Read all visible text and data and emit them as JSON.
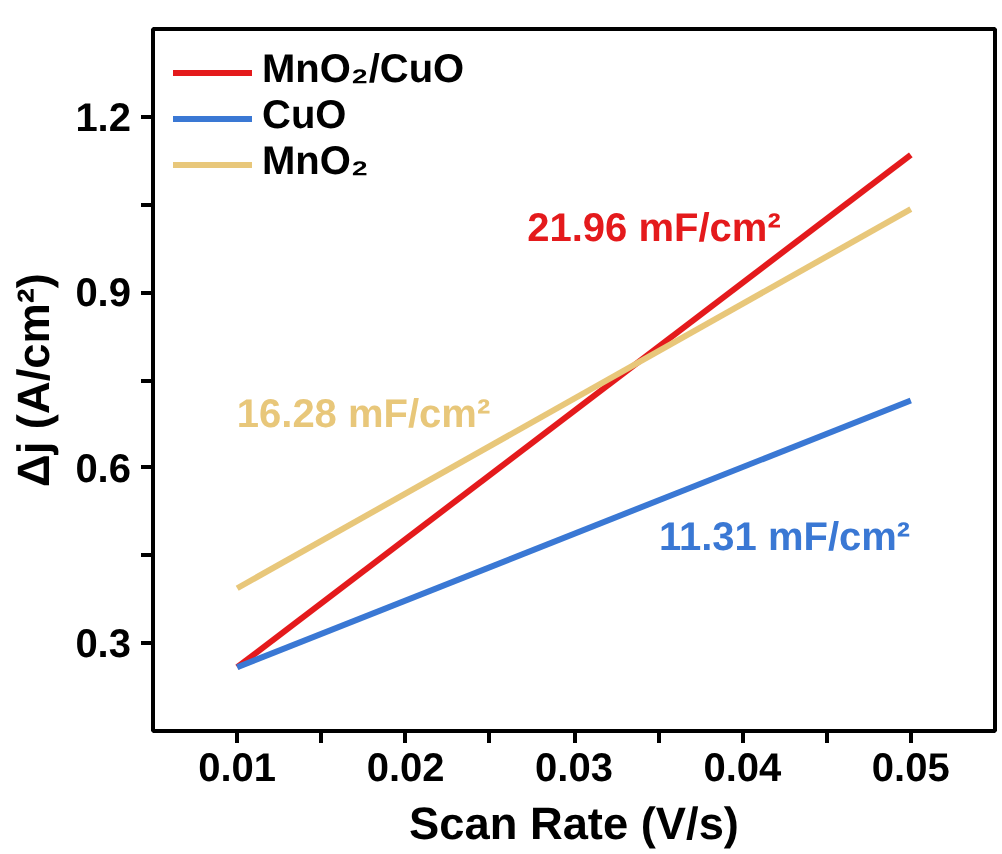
{
  "chart_data": {
    "type": "line",
    "xlabel": "Scan Rate (V/s)",
    "ylabel": "Δj (A/cm²)",
    "x": [
      0.01,
      0.05
    ],
    "series": [
      {
        "name": "MnO₂/CuO",
        "color": "#e41a1c",
        "values": [
          0.259,
          1.135
        ]
      },
      {
        "name": "CuO",
        "color": "#3a78d4",
        "values": [
          0.259,
          0.715
        ]
      },
      {
        "name": "MnO₂",
        "color": "#e8c77a",
        "values": [
          0.394,
          1.042
        ]
      }
    ],
    "annotations": [
      "21.96 mF/cm²",
      "11.31 mF/cm²",
      "16.28 mF/cm²"
    ],
    "xlim": [
      0.005,
      0.055
    ],
    "ylim": [
      0.15,
      1.35
    ],
    "xticks": [
      0.01,
      {
        "value": 0.015,
        "label": null
      },
      0.02,
      {
        "value": 0.025,
        "label": null
      },
      0.03,
      {
        "value": 0.035,
        "label": null
      },
      0.04,
      {
        "value": 0.045,
        "label": null
      },
      0.05
    ],
    "yticks": [
      0.3,
      {
        "value": 0.45,
        "label": null
      },
      0.6,
      {
        "value": 0.75,
        "label": null
      },
      0.9,
      {
        "value": 1.05,
        "label": null
      },
      1.2
    ],
    "grid": false,
    "legend": "top left",
    "marker": "none",
    "line_style": "solid"
  }
}
